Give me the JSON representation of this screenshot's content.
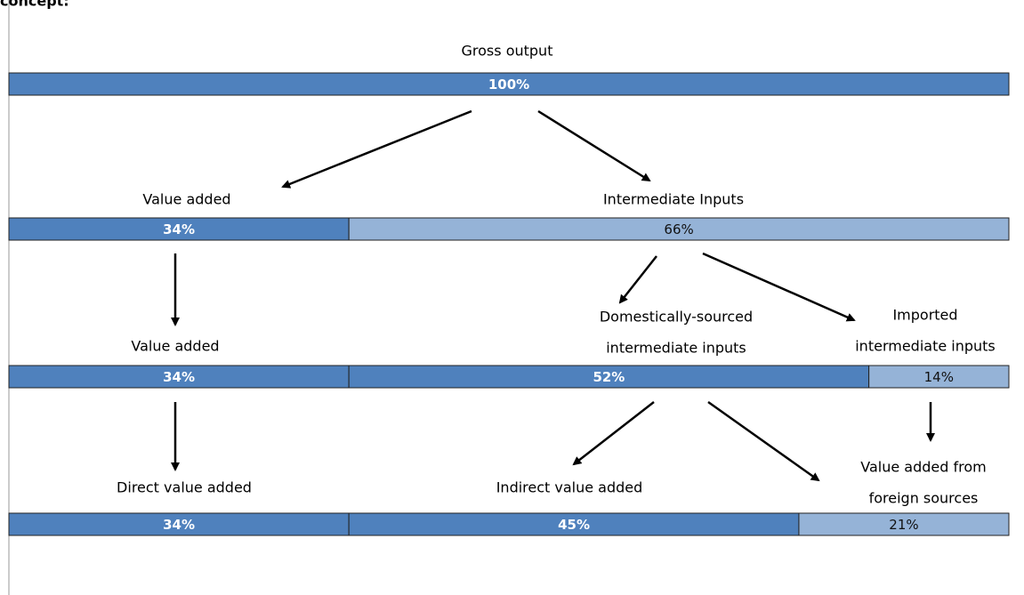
{
  "header": {
    "title": "concept:"
  },
  "levels": [
    {
      "labels": [
        "Gross output"
      ],
      "segments": [
        "100%"
      ]
    },
    {
      "labels": [
        "Value added",
        "Intermediate Inputs"
      ],
      "segments": [
        "34%",
        "66%"
      ]
    },
    {
      "labels": [
        "Value added",
        "Domestically-sourced",
        "intermediate inputs",
        "Imported",
        "intermediate inputs"
      ],
      "segments": [
        "34%",
        "52%",
        "14%"
      ]
    },
    {
      "labels": [
        "Direct value added",
        "Indirect value added",
        "Value added from",
        "foreign sources"
      ],
      "segments": [
        "34%",
        "45%",
        "21%"
      ]
    }
  ]
}
